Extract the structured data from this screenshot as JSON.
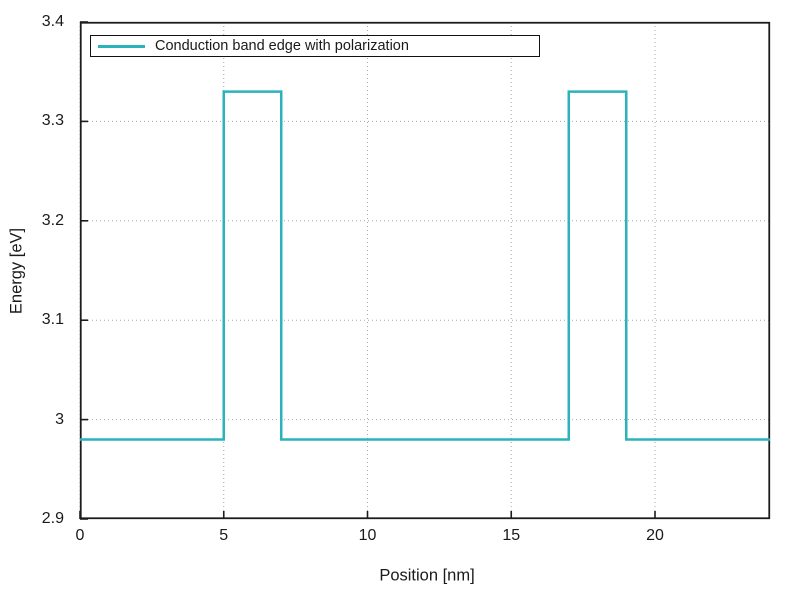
{
  "chart_data": {
    "type": "line",
    "title": "",
    "xlabel": "Position [nm]",
    "ylabel": "Energy [eV]",
    "xlim": [
      0,
      24
    ],
    "ylim": [
      2.9,
      3.4
    ],
    "xticks": [
      0,
      5,
      10,
      15,
      20
    ],
    "xtick_labels": [
      "0",
      "5",
      "10",
      "15",
      "20"
    ],
    "yticks": [
      2.9,
      3.0,
      3.1,
      3.2,
      3.3,
      3.4
    ],
    "ytick_labels": [
      "2.9",
      "3",
      "3.1",
      "3.2",
      "3.3",
      "3.4"
    ],
    "grid": "dotted",
    "grid_color": "#a8a8a8",
    "frame_color": "#1c1c1c",
    "text_color": "#1a1a1a",
    "legend_position": "top-left-inside",
    "series": [
      {
        "name": "Conduction band edge with polarization",
        "color": "#2ab3bb",
        "x": [
          0,
          5,
          5,
          7,
          7,
          17,
          17,
          19,
          19,
          24
        ],
        "y": [
          2.98,
          2.98,
          3.33,
          3.33,
          2.98,
          2.98,
          3.33,
          3.33,
          2.98,
          2.98
        ]
      }
    ]
  }
}
